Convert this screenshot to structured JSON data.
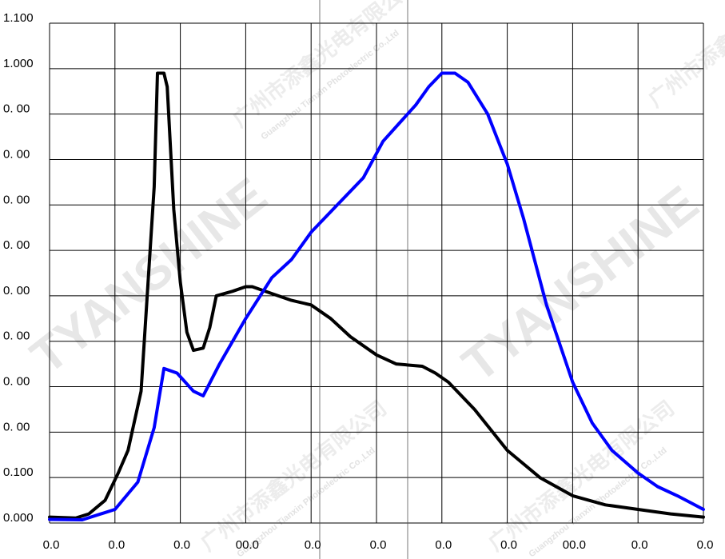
{
  "watermark": {
    "brand": "TYANSHINE",
    "company_cn": "广州市添鑫光电有限公司",
    "company_en": "Guangzhou Tianxin Photoelectric Co.,Ltd"
  },
  "chart_data": {
    "type": "line",
    "title": "",
    "xlabel": "",
    "ylabel": "",
    "grid": true,
    "x_tick_labels": [
      "0.0",
      "0.0",
      "0.0",
      "00.0",
      "0.0",
      "0.0",
      "0.0",
      "0.0",
      "00.0",
      "0.0",
      "0.0"
    ],
    "y_tick_labels": [
      "0.000",
      "0.100",
      "0. 00",
      "0. 00",
      "0. 00",
      "0. 00",
      "0. 00",
      "0. 00",
      "0. 00",
      "0. 00",
      "1.000",
      "1.100"
    ],
    "x_range": [
      0,
      10
    ],
    "ylim": [
      0,
      1.1
    ],
    "colors": {
      "black_series": "#000000",
      "blue_series": "#0000ff",
      "grid": "#000000"
    },
    "series": [
      {
        "color": "#000000",
        "x": [
          0.0,
          0.4,
          0.6,
          0.85,
          1.05,
          1.2,
          1.4,
          1.6,
          1.65,
          1.75,
          1.8,
          1.9,
          2.0,
          2.1,
          2.2,
          2.35,
          2.45,
          2.55,
          2.8,
          3.0,
          3.1,
          3.2,
          3.4,
          3.7,
          4.0,
          4.3,
          4.6,
          5.0,
          5.3,
          5.7,
          5.9,
          6.1,
          6.5,
          7.0,
          7.5,
          8.0,
          8.5,
          9.0,
          9.5,
          10.0
        ],
        "y": [
          0.013,
          0.011,
          0.02,
          0.05,
          0.11,
          0.16,
          0.29,
          0.74,
          0.99,
          0.99,
          0.96,
          0.69,
          0.53,
          0.42,
          0.38,
          0.385,
          0.43,
          0.5,
          0.51,
          0.52,
          0.52,
          0.515,
          0.505,
          0.49,
          0.48,
          0.45,
          0.41,
          0.37,
          0.35,
          0.345,
          0.33,
          0.31,
          0.25,
          0.16,
          0.1,
          0.06,
          0.04,
          0.03,
          0.02,
          0.013
        ]
      },
      {
        "color": "#0000ff",
        "x": [
          0.0,
          0.5,
          1.0,
          1.35,
          1.6,
          1.75,
          1.95,
          2.2,
          2.35,
          2.6,
          3.0,
          3.4,
          3.7,
          4.0,
          4.4,
          4.8,
          5.1,
          5.35,
          5.6,
          5.8,
          6.0,
          6.2,
          6.4,
          6.7,
          7.0,
          7.25,
          7.6,
          8.0,
          8.3,
          8.6,
          9.0,
          9.3,
          9.6,
          9.8,
          10.0
        ],
        "y": [
          0.008,
          0.007,
          0.03,
          0.09,
          0.21,
          0.34,
          0.33,
          0.29,
          0.28,
          0.35,
          0.45,
          0.54,
          0.58,
          0.64,
          0.7,
          0.76,
          0.84,
          0.88,
          0.92,
          0.96,
          0.99,
          0.99,
          0.97,
          0.9,
          0.79,
          0.67,
          0.48,
          0.31,
          0.22,
          0.16,
          0.11,
          0.08,
          0.06,
          0.045,
          0.03
        ]
      }
    ]
  }
}
